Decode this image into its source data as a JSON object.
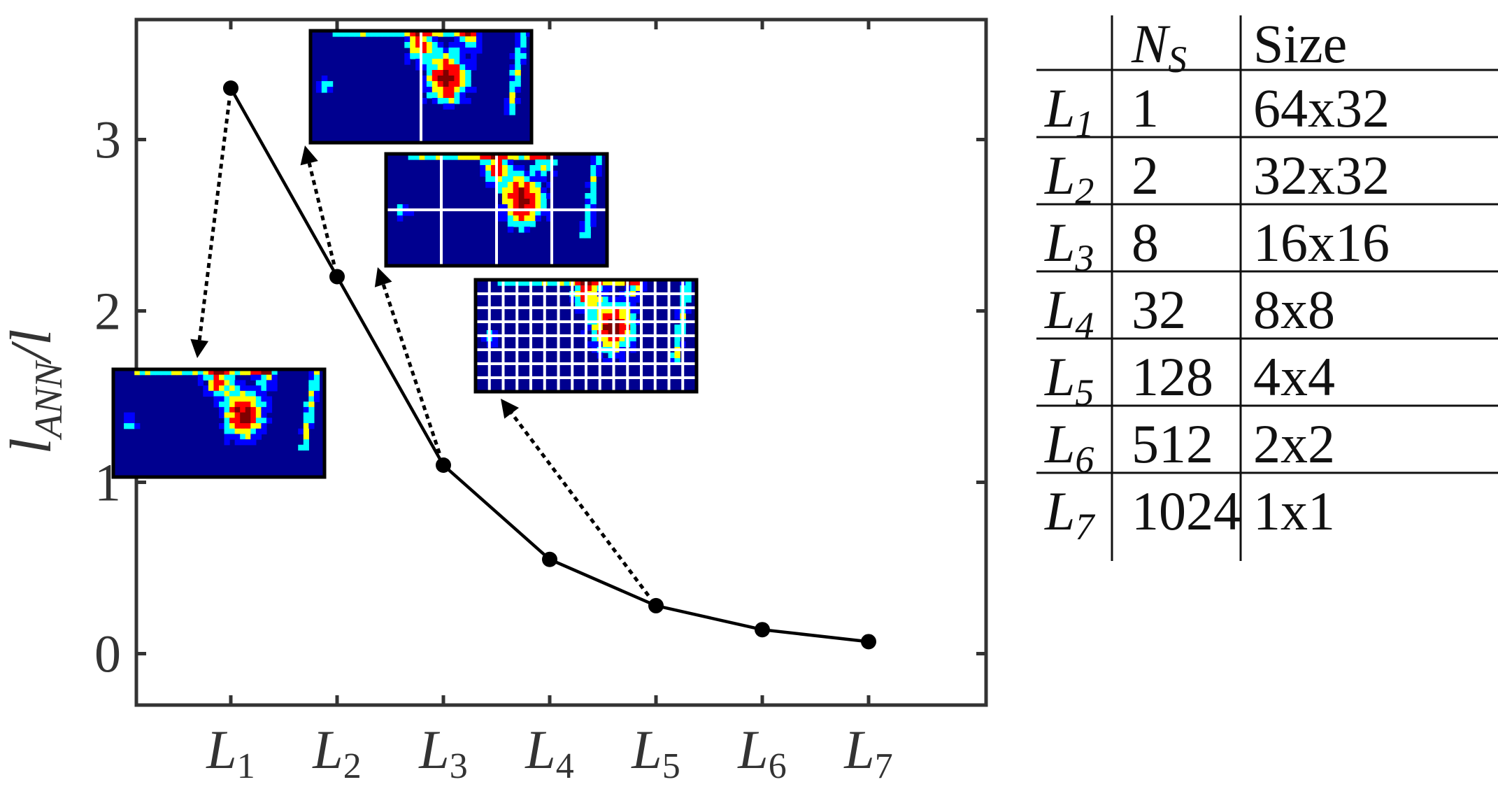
{
  "chart_data": {
    "type": "line",
    "categories": [
      "L1",
      "L2",
      "L3",
      "L4",
      "L5",
      "L6",
      "L7"
    ],
    "tick_labels": [
      {
        "base": "L",
        "sub": "1"
      },
      {
        "base": "L",
        "sub": "2"
      },
      {
        "base": "L",
        "sub": "3"
      },
      {
        "base": "L",
        "sub": "4"
      },
      {
        "base": "L",
        "sub": "5"
      },
      {
        "base": "L",
        "sub": "6"
      },
      {
        "base": "L",
        "sub": "7"
      }
    ],
    "values": [
      3.3,
      2.2,
      1.1,
      0.55,
      0.28,
      0.14,
      0.07
    ],
    "ylabel": {
      "base": "l",
      "sub": "ANN",
      "suffix": "/l"
    },
    "xlabel": "",
    "ylim": [
      -0.3,
      3.7
    ],
    "yticks": [
      "0",
      "1",
      "2",
      "3"
    ],
    "grid": false,
    "legend": "none",
    "line_color": "#000000",
    "insets": [
      {
        "from": "L1",
        "grid_cols": 1,
        "grid_rows": 1
      },
      {
        "from": "L2",
        "grid_cols": 2,
        "grid_rows": 1
      },
      {
        "from": "L3",
        "grid_cols": 4,
        "grid_rows": 2
      },
      {
        "from": "L5",
        "grid_cols": 16,
        "grid_rows": 8
      }
    ],
    "colormap": [
      "#00008f",
      "#0000ff",
      "#00ffff",
      "#ffff00",
      "#ff0000",
      "#800000"
    ]
  },
  "table": {
    "headers": [
      {
        "base": "",
        "sub": ""
      },
      {
        "base": "N",
        "sub": "S"
      },
      {
        "base": "Size",
        "sub": ""
      }
    ],
    "rows": [
      {
        "level": "L",
        "level_sub": "1",
        "ns": "1",
        "size": "64x32"
      },
      {
        "level": "L",
        "level_sub": "2",
        "ns": "2",
        "size": "32x32"
      },
      {
        "level": "L",
        "level_sub": "3",
        "ns": "8",
        "size": "16x16"
      },
      {
        "level": "L",
        "level_sub": "4",
        "ns": "32",
        "size": "8x8"
      },
      {
        "level": "L",
        "level_sub": "5",
        "ns": "128",
        "size": "4x4"
      },
      {
        "level": "L",
        "level_sub": "6",
        "ns": "512",
        "size": "2x2"
      },
      {
        "level": "L",
        "level_sub": "7",
        "ns": "1024",
        "size": "1x1"
      }
    ]
  }
}
